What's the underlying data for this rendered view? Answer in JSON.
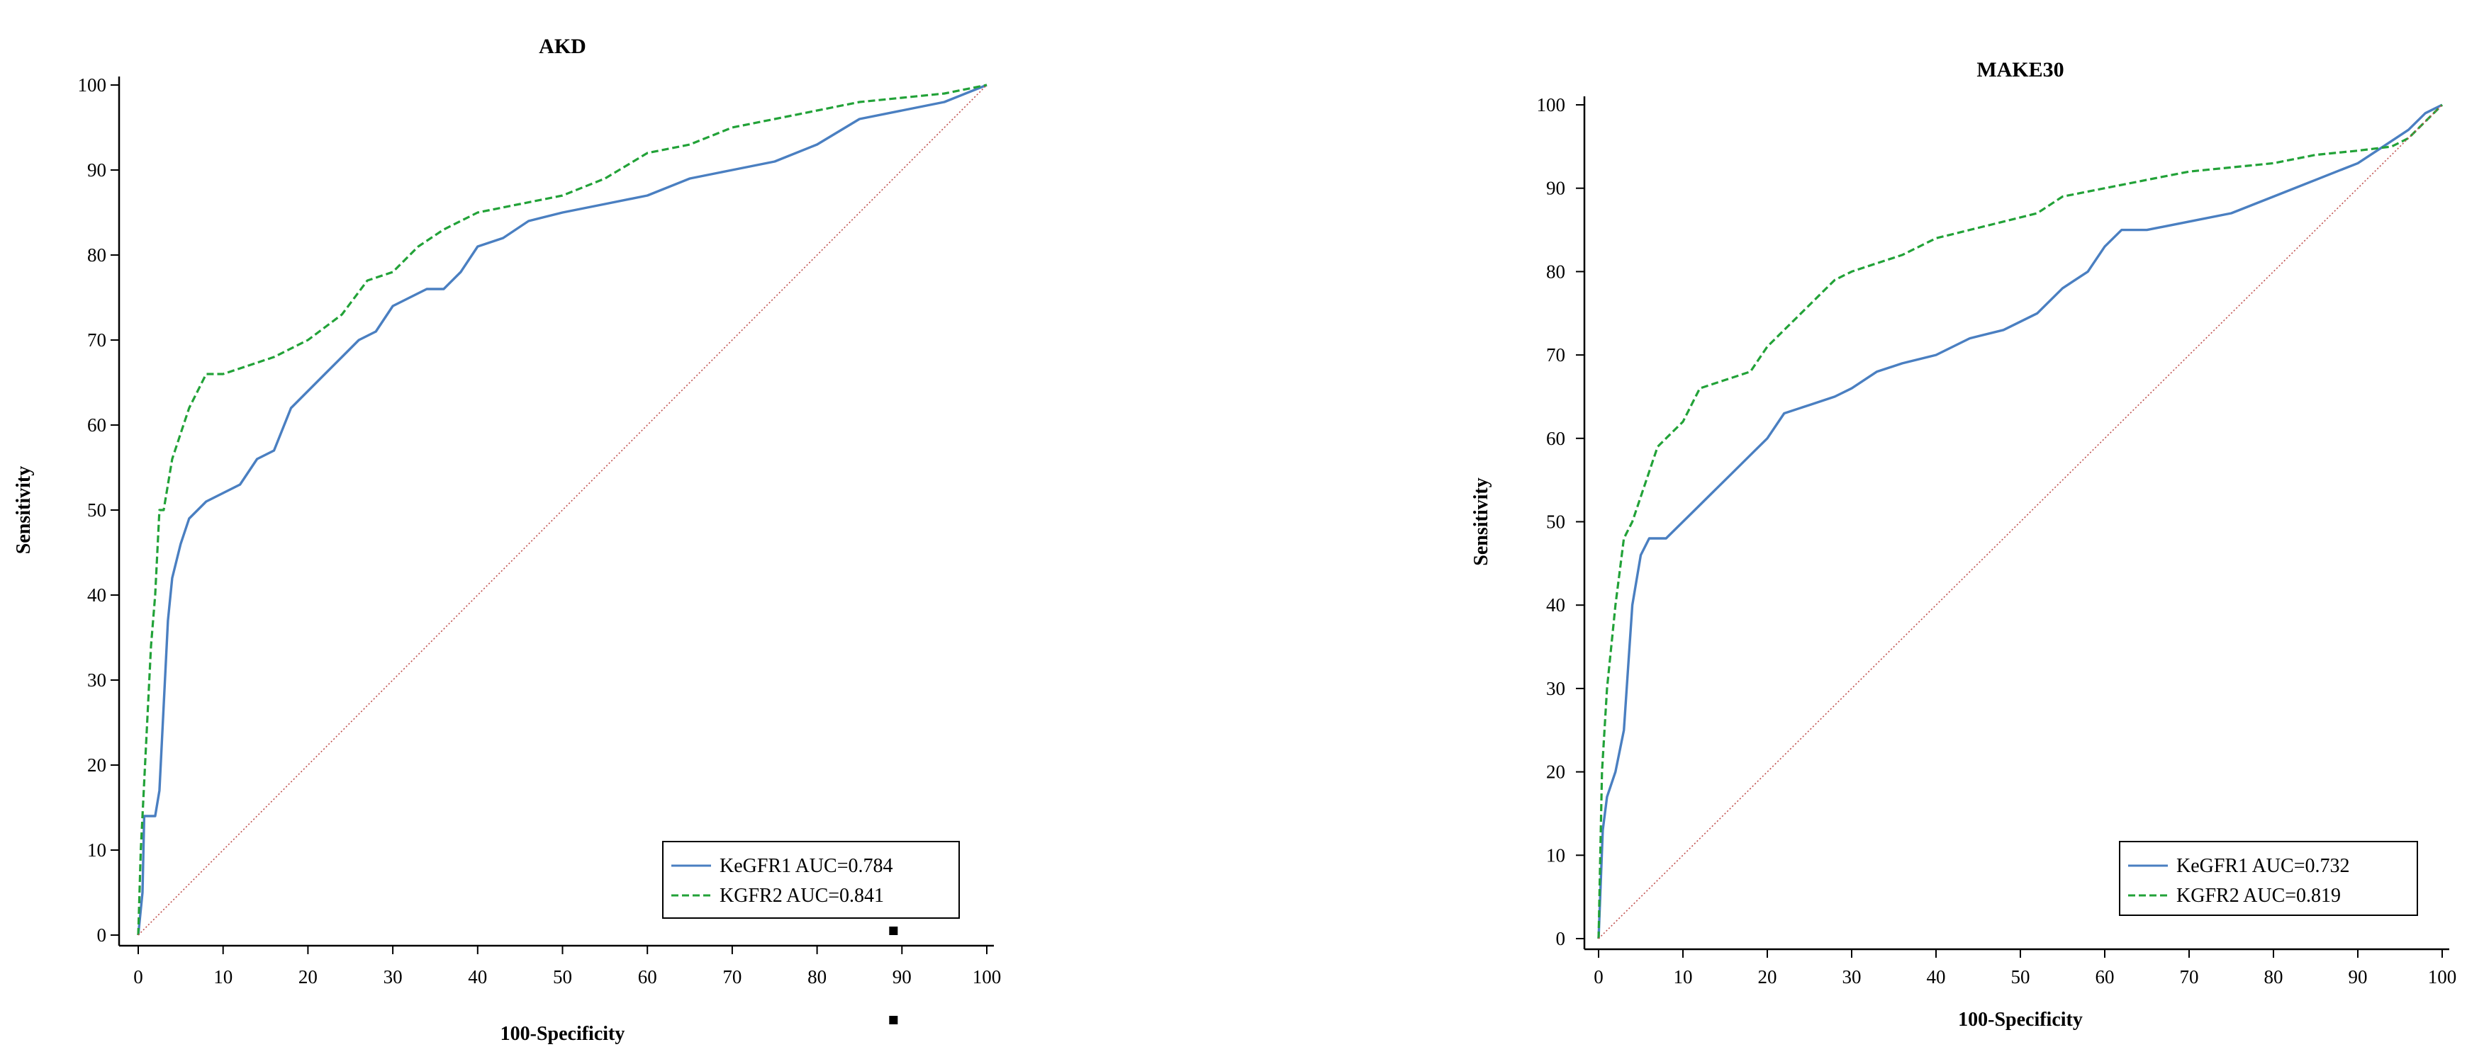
{
  "colors": {
    "kegfr1": "#4a7fc1",
    "kgfr2": "#22a238",
    "reference": "#c0504d",
    "axis": "#000000"
  },
  "chart_data": [
    {
      "type": "line",
      "title": "AKD",
      "xlabel": "100-Specificity",
      "ylabel": "Sensitivity",
      "xlim": [
        0,
        100
      ],
      "ylim": [
        0,
        100
      ],
      "x_ticks": [
        "0",
        "10",
        "20",
        "30",
        "40",
        "50",
        "60",
        "70",
        "80",
        "90",
        "100"
      ],
      "y_ticks": [
        "0",
        "10",
        "20",
        "30",
        "40",
        "50",
        "60",
        "70",
        "80",
        "90",
        "100"
      ],
      "grid": false,
      "legend_position": "bottom-right",
      "series": [
        {
          "name": "KeGFR1 AUC=0.784",
          "style": "solid",
          "points": [
            [
              0,
              0
            ],
            [
              0.5,
              5
            ],
            [
              0.7,
              14
            ],
            [
              2,
              14
            ],
            [
              2.5,
              17
            ],
            [
              3,
              27
            ],
            [
              3.5,
              37
            ],
            [
              4,
              42
            ],
            [
              5,
              46
            ],
            [
              6,
              49
            ],
            [
              7,
              50
            ],
            [
              8,
              51
            ],
            [
              10,
              52
            ],
            [
              12,
              53
            ],
            [
              14,
              56
            ],
            [
              16,
              57
            ],
            [
              18,
              62
            ],
            [
              20,
              64
            ],
            [
              22,
              66
            ],
            [
              24,
              68
            ],
            [
              26,
              70
            ],
            [
              28,
              71
            ],
            [
              30,
              74
            ],
            [
              32,
              75
            ],
            [
              34,
              76
            ],
            [
              36,
              76
            ],
            [
              38,
              78
            ],
            [
              40,
              81
            ],
            [
              43,
              82
            ],
            [
              46,
              84
            ],
            [
              50,
              85
            ],
            [
              55,
              86
            ],
            [
              60,
              87
            ],
            [
              65,
              89
            ],
            [
              70,
              90
            ],
            [
              75,
              91
            ],
            [
              80,
              93
            ],
            [
              85,
              96
            ],
            [
              90,
              97
            ],
            [
              95,
              98
            ],
            [
              100,
              100
            ]
          ]
        },
        {
          "name": "KGFR2 AUC=0.841",
          "style": "dashed",
          "points": [
            [
              0,
              0
            ],
            [
              0.3,
              10
            ],
            [
              0.8,
              20
            ],
            [
              1.5,
              34
            ],
            [
              2,
              40
            ],
            [
              2.5,
              50
            ],
            [
              3,
              50
            ],
            [
              4,
              56
            ],
            [
              5,
              59
            ],
            [
              6,
              62
            ],
            [
              7,
              64
            ],
            [
              8,
              66
            ],
            [
              10,
              66
            ],
            [
              13,
              67
            ],
            [
              16,
              68
            ],
            [
              20,
              70
            ],
            [
              24,
              73
            ],
            [
              27,
              77
            ],
            [
              30,
              78
            ],
            [
              33,
              81
            ],
            [
              36,
              83
            ],
            [
              40,
              85
            ],
            [
              45,
              86
            ],
            [
              50,
              87
            ],
            [
              55,
              89
            ],
            [
              60,
              92
            ],
            [
              65,
              93
            ],
            [
              70,
              95
            ],
            [
              75,
              96
            ],
            [
              80,
              97
            ],
            [
              85,
              98
            ],
            [
              90,
              98.5
            ],
            [
              95,
              99
            ],
            [
              100,
              100
            ]
          ]
        },
        {
          "name": "",
          "style": "reference",
          "points": [
            [
              0,
              0
            ],
            [
              100,
              100
            ]
          ]
        }
      ],
      "extra_marks": [
        [
          89,
          0.5
        ],
        [
          89,
          -10
        ]
      ]
    },
    {
      "type": "line",
      "title": "MAKE30",
      "xlabel": "100-Specificity",
      "ylabel": "Sensitivity",
      "xlim": [
        0,
        100
      ],
      "ylim": [
        0,
        100
      ],
      "x_ticks": [
        "0",
        "10",
        "20",
        "30",
        "40",
        "50",
        "60",
        "70",
        "80",
        "90",
        "100"
      ],
      "y_ticks": [
        "0",
        "10",
        "20",
        "30",
        "40",
        "50",
        "60",
        "70",
        "80",
        "90",
        "100"
      ],
      "grid": false,
      "legend_position": "bottom-right",
      "series": [
        {
          "name": "KeGFR1 AUC=0.732",
          "style": "solid",
          "points": [
            [
              0,
              0
            ],
            [
              0.5,
              13
            ],
            [
              1,
              17
            ],
            [
              2,
              20
            ],
            [
              3,
              25
            ],
            [
              4,
              40
            ],
            [
              5,
              46
            ],
            [
              6,
              48
            ],
            [
              8,
              48
            ],
            [
              10,
              50
            ],
            [
              12,
              52
            ],
            [
              14,
              54
            ],
            [
              16,
              56
            ],
            [
              18,
              58
            ],
            [
              20,
              60
            ],
            [
              22,
              63
            ],
            [
              25,
              64
            ],
            [
              28,
              65
            ],
            [
              30,
              66
            ],
            [
              33,
              68
            ],
            [
              36,
              69
            ],
            [
              40,
              70
            ],
            [
              44,
              72
            ],
            [
              48,
              73
            ],
            [
              52,
              75
            ],
            [
              55,
              78
            ],
            [
              58,
              80
            ],
            [
              60,
              83
            ],
            [
              62,
              85
            ],
            [
              65,
              85
            ],
            [
              70,
              86
            ],
            [
              75,
              87
            ],
            [
              80,
              89
            ],
            [
              85,
              91
            ],
            [
              90,
              93
            ],
            [
              93,
              95
            ],
            [
              96,
              97
            ],
            [
              98,
              99
            ],
            [
              100,
              100
            ]
          ]
        },
        {
          "name": "KGFR2 AUC=0.819",
          "style": "dashed",
          "points": [
            [
              0,
              0
            ],
            [
              0.4,
              20
            ],
            [
              1,
              30
            ],
            [
              2,
              40
            ],
            [
              3,
              48
            ],
            [
              4,
              50
            ],
            [
              5,
              53
            ],
            [
              6,
              56
            ],
            [
              7,
              59
            ],
            [
              8,
              60
            ],
            [
              10,
              62
            ],
            [
              12,
              66
            ],
            [
              15,
              67
            ],
            [
              18,
              68
            ],
            [
              20,
              71
            ],
            [
              22,
              73
            ],
            [
              25,
              76
            ],
            [
              28,
              79
            ],
            [
              30,
              80
            ],
            [
              33,
              81
            ],
            [
              36,
              82
            ],
            [
              40,
              84
            ],
            [
              44,
              85
            ],
            [
              48,
              86
            ],
            [
              52,
              87
            ],
            [
              55,
              89
            ],
            [
              60,
              90
            ],
            [
              65,
              91
            ],
            [
              70,
              92
            ],
            [
              75,
              92.5
            ],
            [
              80,
              93
            ],
            [
              85,
              94
            ],
            [
              90,
              94.5
            ],
            [
              94,
              95
            ],
            [
              96,
              96
            ],
            [
              98,
              98
            ],
            [
              100,
              100
            ]
          ]
        },
        {
          "name": "",
          "style": "reference",
          "points": [
            [
              0,
              0
            ],
            [
              100,
              100
            ]
          ]
        }
      ]
    }
  ]
}
